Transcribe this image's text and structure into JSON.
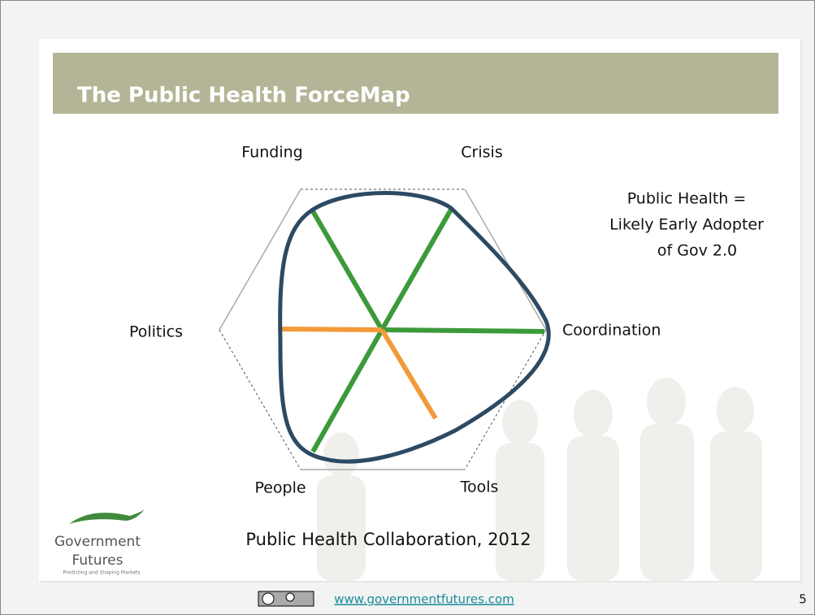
{
  "slide": {
    "title": "The Public Health ForceMap",
    "axes": [
      "Funding",
      "Crisis",
      "Coordination",
      "Tools",
      "People",
      "Politics"
    ],
    "note": [
      "Public Health =",
      "Likely Early Adopter",
      "of Gov 2.0"
    ],
    "caption": "Public Health Collaboration, 2012",
    "logo": {
      "name": [
        "Government",
        "Futures"
      ],
      "tagline": "Predicting and Shaping Markets"
    },
    "footer": {
      "url": "www.governmentfutures.com",
      "page": "5"
    }
  }
}
